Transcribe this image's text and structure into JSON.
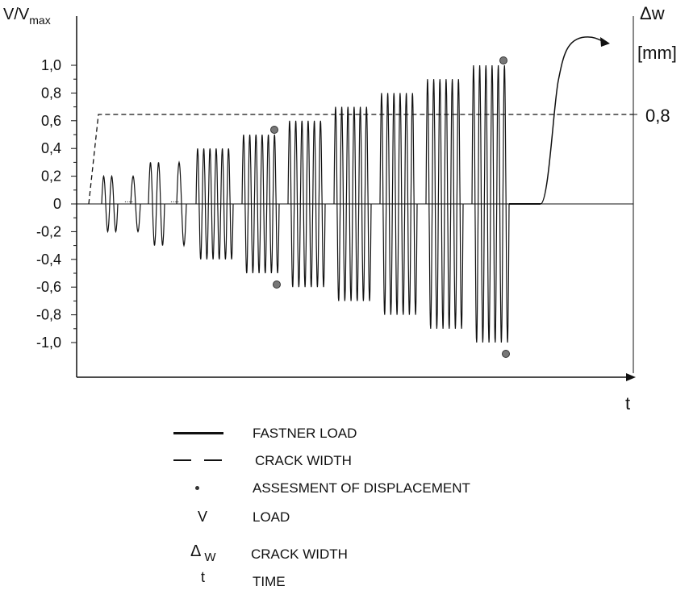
{
  "chart_data": {
    "type": "line",
    "ylabel_main": "V/V",
    "ylabel_sub": "max",
    "y2label": "Δw",
    "y2unit": "[mm]",
    "xlabel": "t",
    "ylim": [
      -1.2,
      1.2
    ],
    "yticks": [
      "1,0",
      "0,8",
      "0,6",
      "0,4",
      "0,2",
      "0",
      "-0,2",
      "-0,4",
      "-0,6",
      "-0,8",
      "-1,0"
    ],
    "yticks_values": [
      1.0,
      0.8,
      0.6,
      0.4,
      0.2,
      0,
      -0.2,
      -0.4,
      -0.6,
      -0.8,
      -1.0
    ],
    "y2ticks": [
      "0,8"
    ],
    "crack_width_level": 0.8,
    "load_blocks": [
      {
        "amplitude": 0.2,
        "cycles": 4
      },
      {
        "amplitude": 0.3,
        "cycles": 4
      },
      {
        "amplitude": 0.4,
        "cycles": 6
      },
      {
        "amplitude": 0.5,
        "cycles": 6
      },
      {
        "amplitude": 0.6,
        "cycles": 6
      },
      {
        "amplitude": 0.7,
        "cycles": 6
      },
      {
        "amplitude": 0.8,
        "cycles": 6
      },
      {
        "amplitude": 0.9,
        "cycles": 6
      },
      {
        "amplitude": 1.0,
        "cycles": 6
      }
    ],
    "assessment_points": [
      0.5,
      -0.5,
      1.0,
      -1.0
    ],
    "series": [
      {
        "name": "FASTNER LOAD",
        "style": "solid"
      },
      {
        "name": "CRACK WIDTH",
        "style": "dashed"
      }
    ]
  },
  "legend": {
    "items": [
      {
        "symbol": "",
        "label": "FASTNER LOAD"
      },
      {
        "symbol": "",
        "label": "CRACK WIDTH"
      },
      {
        "symbol": "",
        "label": "ASSESMENT OF DISPLACEMENT"
      },
      {
        "symbol": "V",
        "label": "LOAD"
      },
      {
        "symbol": "Δ",
        "symbol_sub": "W",
        "label": "CRACK WIDTH"
      },
      {
        "symbol": "t",
        "label": "TIME"
      }
    ]
  }
}
